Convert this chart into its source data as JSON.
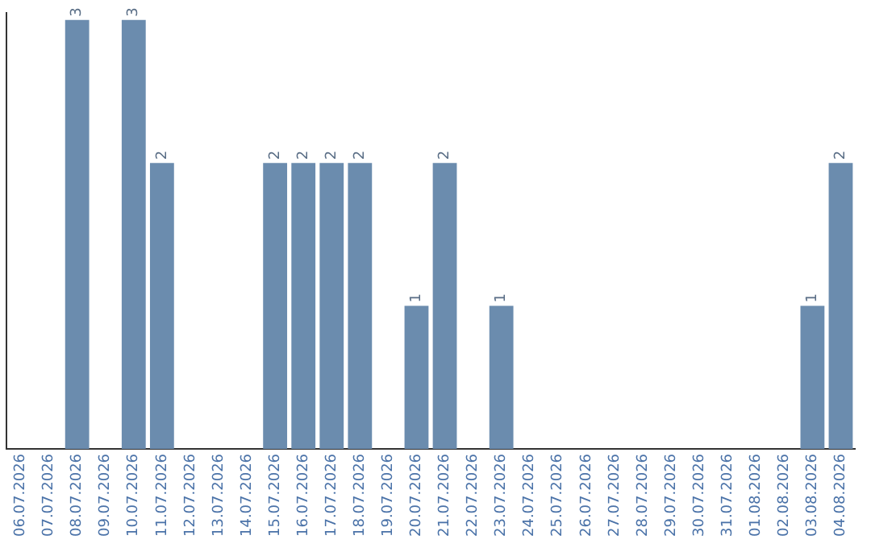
{
  "chart_data": {
    "type": "bar",
    "categories": [
      "06.07.2026",
      "07.07.2026",
      "08.07.2026",
      "09.07.2026",
      "10.07.2026",
      "11.07.2026",
      "12.07.2026",
      "13.07.2026",
      "14.07.2026",
      "15.07.2026",
      "16.07.2026",
      "17.07.2026",
      "18.07.2026",
      "19.07.2026",
      "20.07.2026",
      "21.07.2026",
      "22.07.2026",
      "23.07.2026",
      "24.07.2026",
      "25.07.2026",
      "26.07.2026",
      "27.07.2026",
      "28.07.2026",
      "29.07.2026",
      "30.07.2026",
      "31.07.2026",
      "01.08.2026",
      "02.08.2026",
      "03.08.2026",
      "04.08.2026"
    ],
    "values": [
      0,
      0,
      3,
      0,
      3,
      2,
      0,
      0,
      0,
      2,
      2,
      2,
      2,
      0,
      1,
      2,
      0,
      1,
      0,
      0,
      0,
      0,
      0,
      0,
      0,
      0,
      0,
      0,
      1,
      2
    ],
    "value_labels": [
      null,
      null,
      "3",
      null,
      "3",
      "2",
      null,
      null,
      null,
      "2",
      "2",
      "2",
      "2",
      null,
      "1",
      "2",
      null,
      "1",
      null,
      null,
      null,
      null,
      null,
      null,
      null,
      null,
      null,
      null,
      "1",
      "2"
    ],
    "color": "#6b8cae",
    "ylim": [
      0,
      3.05
    ],
    "tick_labels": "x",
    "grid": false,
    "legend": false
  }
}
